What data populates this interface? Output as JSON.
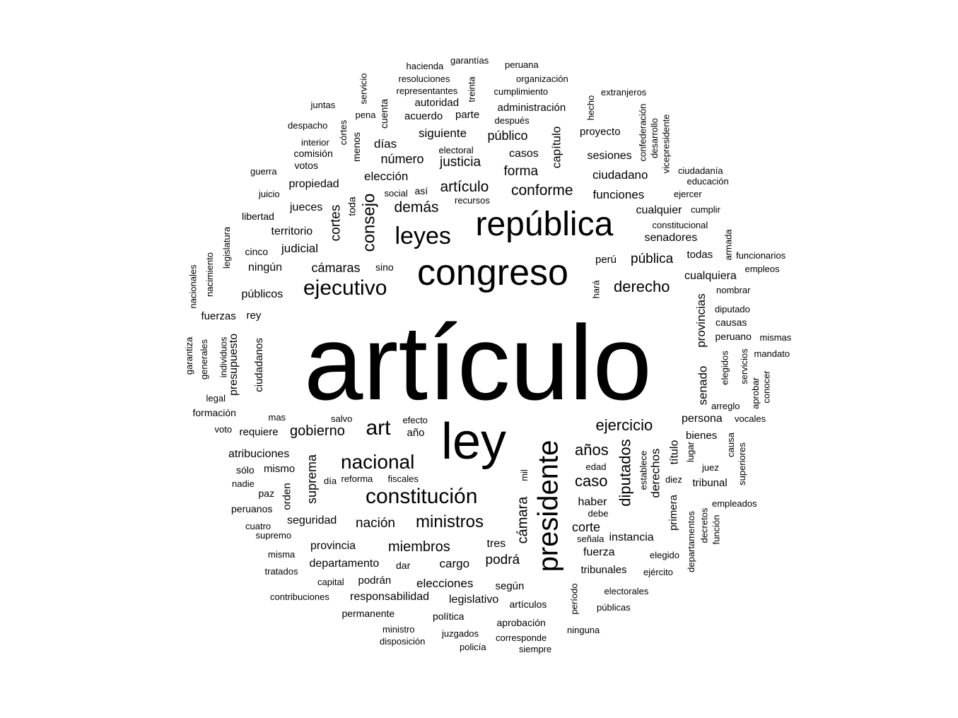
{
  "text_color": "#000000",
  "background": "#ffffff",
  "words": [
    {
      "text": "artículo",
      "size": "xl"
    },
    {
      "text": "ley",
      "size": "l"
    },
    {
      "text": "congreso",
      "size": "l"
    },
    {
      "text": "república",
      "size": "l"
    },
    {
      "text": "presidente",
      "size": "l"
    },
    {
      "text": "leyes",
      "size": "m"
    },
    {
      "text": "ejecutivo",
      "size": "m"
    },
    {
      "text": "constitución",
      "size": "m"
    },
    {
      "text": "nacional",
      "size": "m"
    },
    {
      "text": "art",
      "size": "m"
    },
    {
      "text": "consejo",
      "size": "m"
    },
    {
      "text": "ministros",
      "size": "s"
    },
    {
      "text": "derecho",
      "size": "s"
    },
    {
      "text": "ejercicio",
      "size": "s"
    },
    {
      "text": "diputados",
      "size": "s"
    },
    {
      "text": "cámara",
      "size": "s"
    },
    {
      "text": "gobierno",
      "size": "s"
    },
    {
      "text": "caso",
      "size": "s"
    },
    {
      "text": "años",
      "size": "s"
    },
    {
      "text": "miembros",
      "size": "s"
    },
    {
      "text": "nación",
      "size": "s"
    },
    {
      "text": "artículo",
      "size": "s"
    },
    {
      "text": "conforme",
      "size": "s"
    },
    {
      "text": "demás",
      "size": "s"
    },
    {
      "text": "cortes",
      "size": "s"
    },
    {
      "text": "pública",
      "size": "s"
    },
    {
      "text": "forma",
      "size": "s"
    },
    {
      "text": "justicia",
      "size": "s"
    },
    {
      "text": "número",
      "size": "s"
    },
    {
      "text": "suprema",
      "size": "s"
    },
    {
      "text": "corte",
      "size": "s"
    },
    {
      "text": "podrá",
      "size": "s"
    },
    {
      "text": "capítulo",
      "size": "s"
    },
    {
      "text": "derechos",
      "size": "s"
    },
    {
      "text": "senado",
      "size": "s"
    },
    {
      "text": "provincias",
      "size": "s"
    },
    {
      "text": "público",
      "size": "xs"
    },
    {
      "text": "cámaras",
      "size": "xs"
    },
    {
      "text": "elecciones",
      "size": "xs"
    },
    {
      "text": "cargo",
      "size": "xs"
    },
    {
      "text": "elección",
      "size": "xs"
    },
    {
      "text": "siguiente",
      "size": "xs"
    },
    {
      "text": "judicial",
      "size": "xs"
    },
    {
      "text": "ciudadano",
      "size": "xs"
    },
    {
      "text": "funciones",
      "size": "xs"
    },
    {
      "text": "haber",
      "size": "xs"
    },
    {
      "text": "tres",
      "size": "xs"
    },
    {
      "text": "fuerza",
      "size": "xs"
    },
    {
      "text": "responsabilidad",
      "size": "xs"
    },
    {
      "text": "legislativo",
      "size": "xs"
    },
    {
      "text": "departamento",
      "size": "xs"
    },
    {
      "text": "provincia",
      "size": "xs"
    },
    {
      "text": "seguridad",
      "size": "xs"
    },
    {
      "text": "atribuciones",
      "size": "xs"
    },
    {
      "text": "persona",
      "size": "xs"
    },
    {
      "text": "senadores",
      "size": "xs"
    },
    {
      "text": "cualquier",
      "size": "xs"
    },
    {
      "text": "cualquiera",
      "size": "xs"
    },
    {
      "text": "instancia",
      "size": "xs"
    },
    {
      "text": "tribunales",
      "size": "xs"
    },
    {
      "text": "días",
      "size": "xs"
    },
    {
      "text": "casos",
      "size": "xs"
    },
    {
      "text": "sesiones",
      "size": "xs"
    },
    {
      "text": "propiedad",
      "size": "xs"
    },
    {
      "text": "jueces",
      "size": "xs"
    },
    {
      "text": "territorio",
      "size": "xs"
    },
    {
      "text": "ningún",
      "size": "xs"
    },
    {
      "text": "públicos",
      "size": "xs"
    },
    {
      "text": "presupuesto",
      "size": "xs"
    },
    {
      "text": "ciudadanos",
      "size": "xs"
    },
    {
      "text": "título",
      "size": "xs"
    },
    {
      "text": "según",
      "size": "xs"
    },
    {
      "text": "requiere",
      "size": "xs"
    },
    {
      "text": "podrán",
      "size": "xs"
    },
    {
      "text": "administración",
      "size": "xs"
    },
    {
      "text": "proyecto",
      "size": "xs"
    },
    {
      "text": "autoridad",
      "size": "xs"
    },
    {
      "text": "acuerdo",
      "size": "xs"
    },
    {
      "text": "parte",
      "size": "xs"
    },
    {
      "text": "perú",
      "size": "xs"
    },
    {
      "text": "todas",
      "size": "xs"
    },
    {
      "text": "rey",
      "size": "xs"
    },
    {
      "text": "fuerzas",
      "size": "xs"
    },
    {
      "text": "mismo",
      "size": "xs"
    },
    {
      "text": "orden",
      "size": "xs"
    },
    {
      "text": "año",
      "size": "xs"
    },
    {
      "text": "edad",
      "size": "xs"
    },
    {
      "text": "bienes",
      "size": "xs"
    },
    {
      "text": "tribunal",
      "size": "xs"
    },
    {
      "text": "primera",
      "size": "xs"
    },
    {
      "text": "aprobación",
      "size": "xs"
    },
    {
      "text": "artículos",
      "size": "xs"
    },
    {
      "text": "permanente",
      "size": "xs"
    },
    {
      "text": "política",
      "size": "xs"
    },
    {
      "text": "formación",
      "size": "xs"
    },
    {
      "text": "libertad",
      "size": "xs"
    },
    {
      "text": "comisión",
      "size": "xs"
    },
    {
      "text": "votos",
      "size": "xs"
    },
    {
      "text": "cinco",
      "size": "xs"
    },
    {
      "text": "sino",
      "size": "xs"
    },
    {
      "text": "así",
      "size": "xs"
    },
    {
      "text": "toda",
      "size": "xs"
    },
    {
      "text": "menos",
      "size": "xs"
    },
    {
      "text": "cuenta",
      "size": "xs"
    },
    {
      "text": "peruano",
      "size": "xs"
    },
    {
      "text": "causas",
      "size": "xs"
    },
    {
      "text": "diputado",
      "size": "xs"
    },
    {
      "text": "elegidos",
      "size": "xs"
    },
    {
      "text": "lugar",
      "size": "xs"
    },
    {
      "text": "paz",
      "size": "xs"
    },
    {
      "text": "peruanos",
      "size": "xs"
    },
    {
      "text": "sólo",
      "size": "xs"
    },
    {
      "text": "dar",
      "size": "xs"
    },
    {
      "text": "cumplimiento",
      "size": "xxs"
    },
    {
      "text": "resoluciones",
      "size": "xxs"
    },
    {
      "text": "representantes",
      "size": "xxs"
    },
    {
      "text": "hacienda",
      "size": "xxs"
    },
    {
      "text": "garantías",
      "size": "xxs"
    },
    {
      "text": "peruana",
      "size": "xxs"
    },
    {
      "text": "organización",
      "size": "xxs"
    },
    {
      "text": "extranjeros",
      "size": "xxs"
    },
    {
      "text": "hecho",
      "size": "xxs"
    },
    {
      "text": "confederación",
      "size": "xxs"
    },
    {
      "text": "desarrollo",
      "size": "xxs"
    },
    {
      "text": "vicepresidente",
      "size": "xxs"
    },
    {
      "text": "ciudadanía",
      "size": "xxs"
    },
    {
      "text": "educación",
      "size": "xxs"
    },
    {
      "text": "ejercer",
      "size": "xxs"
    },
    {
      "text": "cumplir",
      "size": "xxs"
    },
    {
      "text": "constitucional",
      "size": "xxs"
    },
    {
      "text": "armada",
      "size": "xxs"
    },
    {
      "text": "funcionarios",
      "size": "xxs"
    },
    {
      "text": "empleos",
      "size": "xxs"
    },
    {
      "text": "nombrar",
      "size": "xxs"
    },
    {
      "text": "mismas",
      "size": "xxs"
    },
    {
      "text": "mandato",
      "size": "xxs"
    },
    {
      "text": "servicios",
      "size": "xxs"
    },
    {
      "text": "aprobar",
      "size": "xxs"
    },
    {
      "text": "conocer",
      "size": "xxs"
    },
    {
      "text": "arreglo",
      "size": "xxs"
    },
    {
      "text": "vocales",
      "size": "xxs"
    },
    {
      "text": "causa",
      "size": "xxs"
    },
    {
      "text": "superiores",
      "size": "xxs"
    },
    {
      "text": "juez",
      "size": "xxs"
    },
    {
      "text": "empleados",
      "size": "xxs"
    },
    {
      "text": "decretos",
      "size": "xxs"
    },
    {
      "text": "función",
      "size": "xxs"
    },
    {
      "text": "departamentos",
      "size": "xxs"
    },
    {
      "text": "elegido",
      "size": "xxs"
    },
    {
      "text": "ejército",
      "size": "xxs"
    },
    {
      "text": "electorales",
      "size": "xxs"
    },
    {
      "text": "públicas",
      "size": "xxs"
    },
    {
      "text": "período",
      "size": "xxs"
    },
    {
      "text": "ninguna",
      "size": "xxs"
    },
    {
      "text": "siempre",
      "size": "xxs"
    },
    {
      "text": "corresponde",
      "size": "xxs"
    },
    {
      "text": "policía",
      "size": "xxs"
    },
    {
      "text": "juzgados",
      "size": "xxs"
    },
    {
      "text": "disposición",
      "size": "xxs"
    },
    {
      "text": "ministro",
      "size": "xxs"
    },
    {
      "text": "contribuciones",
      "size": "xxs"
    },
    {
      "text": "capital",
      "size": "xxs"
    },
    {
      "text": "tratados",
      "size": "xxs"
    },
    {
      "text": "misma",
      "size": "xxs"
    },
    {
      "text": "supremo",
      "size": "xxs"
    },
    {
      "text": "cuatro",
      "size": "xxs"
    },
    {
      "text": "nadie",
      "size": "xxs"
    },
    {
      "text": "día",
      "size": "xxs"
    },
    {
      "text": "reforma",
      "size": "xxs"
    },
    {
      "text": "fiscales",
      "size": "xxs"
    },
    {
      "text": "mil",
      "size": "xxs"
    },
    {
      "text": "debe",
      "size": "xxs"
    },
    {
      "text": "señala",
      "size": "xxs"
    },
    {
      "text": "establece",
      "size": "xxs"
    },
    {
      "text": "diez",
      "size": "xxs"
    },
    {
      "text": "hará",
      "size": "xxs"
    },
    {
      "text": "voto",
      "size": "xxs"
    },
    {
      "text": "mas",
      "size": "xxs"
    },
    {
      "text": "salvo",
      "size": "xxs"
    },
    {
      "text": "efecto",
      "size": "xxs"
    },
    {
      "text": "legal",
      "size": "xxs"
    },
    {
      "text": "garantiza",
      "size": "xxs"
    },
    {
      "text": "generales",
      "size": "xxs"
    },
    {
      "text": "individuos",
      "size": "xxs"
    },
    {
      "text": "nacionales",
      "size": "xxs"
    },
    {
      "text": "nacimiento",
      "size": "xxs"
    },
    {
      "text": "legislatura",
      "size": "xxs"
    },
    {
      "text": "juicio",
      "size": "xxs"
    },
    {
      "text": "guerra",
      "size": "xxs"
    },
    {
      "text": "social",
      "size": "xxs"
    },
    {
      "text": "recursos",
      "size": "xxs"
    },
    {
      "text": "interior",
      "size": "xxs"
    },
    {
      "text": "despacho",
      "size": "xxs"
    },
    {
      "text": "juntas",
      "size": "xxs"
    },
    {
      "text": "córtes",
      "size": "xxs"
    },
    {
      "text": "servicio",
      "size": "xxs"
    },
    {
      "text": "pena",
      "size": "xxs"
    },
    {
      "text": "treinta",
      "size": "xxs"
    },
    {
      "text": "electoral",
      "size": "xxs"
    },
    {
      "text": "después",
      "size": "xxs"
    }
  ]
}
